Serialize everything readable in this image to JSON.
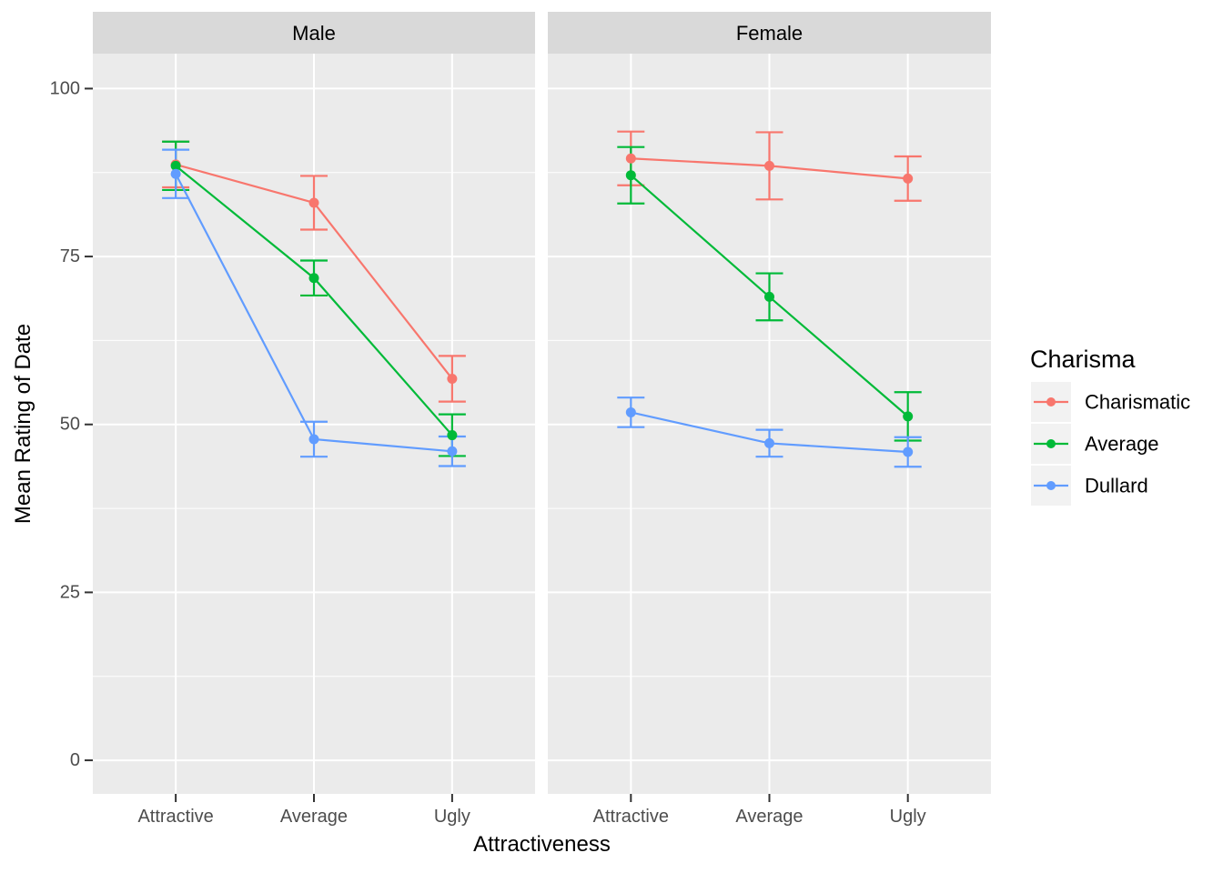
{
  "chart_data": {
    "type": "line",
    "title": "",
    "xlabel": "Attractiveness",
    "ylabel": "Mean Rating of Date",
    "x_categories": [
      "Attractive",
      "Average",
      "Ugly"
    ],
    "y_ticks": [
      0,
      25,
      50,
      75,
      100
    ],
    "y_minor_gridlines": [
      12.5,
      37.5,
      62.5,
      87.5
    ],
    "ylim": [
      -5,
      105.2
    ],
    "grid": "on",
    "error_bars": true,
    "legend_position": "right",
    "legend_title": "Charisma",
    "legend_entries": [
      "Charismatic",
      "Average",
      "Dullard"
    ],
    "series_colors": {
      "Charismatic": "#F8766D",
      "Average": "#00BA38",
      "Dullard": "#619CFF"
    },
    "facets": [
      {
        "label": "Male",
        "series": [
          {
            "name": "Charismatic",
            "means": [
              88.7,
              83.0,
              56.8
            ],
            "errors": [
              3.4,
              4.0,
              3.4
            ]
          },
          {
            "name": "Average",
            "means": [
              88.5,
              71.8,
              48.4
            ],
            "errors": [
              3.6,
              2.6,
              3.1
            ]
          },
          {
            "name": "Dullard",
            "means": [
              87.3,
              47.8,
              46.0
            ],
            "errors": [
              3.6,
              2.6,
              2.2
            ]
          }
        ]
      },
      {
        "label": "Female",
        "series": [
          {
            "name": "Charismatic",
            "means": [
              89.6,
              88.5,
              86.6
            ],
            "errors": [
              4.0,
              5.0,
              3.3
            ]
          },
          {
            "name": "Average",
            "means": [
              87.1,
              69.0,
              51.2
            ],
            "errors": [
              4.2,
              3.5,
              3.6
            ]
          },
          {
            "name": "Dullard",
            "means": [
              51.8,
              47.2,
              45.9
            ],
            "errors": [
              2.2,
              2.0,
              2.2
            ]
          }
        ]
      }
    ]
  },
  "theme": {
    "background": "#FFFFFF",
    "panel_bg": "#EBEBEB",
    "strip_bg": "#D9D9D9",
    "grid_color": "#FFFFFF",
    "axis_tick_color": "#333333",
    "tick_label_color": "#4D4D4D",
    "title_color": "#000000",
    "legend_key_bg": "#F2F2F2"
  }
}
